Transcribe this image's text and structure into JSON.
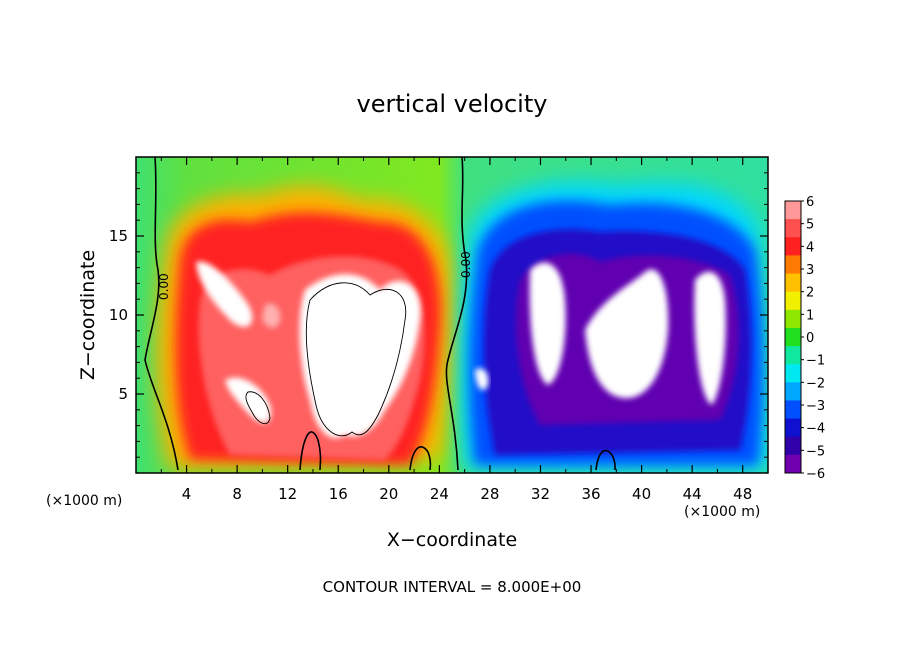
{
  "chart_data": {
    "type": "heatmap",
    "title": "vertical velocity",
    "xlabel": "X−coordinate",
    "ylabel": "Z−coordinate",
    "x_unit": "(×1000 m)",
    "x_unit_right": "(×1000 m)",
    "footer": "CONTOUR INTERVAL = 8.000E+00",
    "xlim": [
      0,
      50
    ],
    "ylim": [
      0,
      20
    ],
    "x_ticks": [
      "4",
      "8",
      "12",
      "16",
      "20",
      "24",
      "28",
      "32",
      "36",
      "40",
      "44",
      "48"
    ],
    "x_tick_values": [
      4,
      8,
      12,
      16,
      20,
      24,
      28,
      32,
      36,
      40,
      44,
      48
    ],
    "y_ticks": [
      "5",
      "10",
      "15"
    ],
    "y_tick_values": [
      5,
      10,
      15
    ],
    "contour_labels": [
      "0.00",
      "0.00"
    ],
    "colorbar": {
      "levels": [
        6,
        5,
        4,
        3,
        2,
        1,
        0,
        -1,
        -2,
        -3,
        -4,
        -5,
        -6
      ],
      "labels": [
        "6",
        "5",
        "4",
        "3",
        "2",
        "1",
        "0",
        "−1",
        "−2",
        "−3",
        "−4",
        "−5",
        "−6"
      ],
      "colors": [
        "#ff9898",
        "#ff5050",
        "#ff2020",
        "#ff7a00",
        "#ffc000",
        "#f0f000",
        "#90e800",
        "#20e020",
        "#10e8a0",
        "#00e8f0",
        "#00a8ff",
        "#0050ff",
        "#1010d0",
        "#3000a8",
        "#7000b0"
      ]
    },
    "features": [
      {
        "kind": "updraft",
        "x": 8,
        "z": 10,
        "value": 6
      },
      {
        "kind": "updraft",
        "x": 17,
        "z": 8,
        "value": 6
      },
      {
        "kind": "downdraft",
        "x": 32,
        "z": 10,
        "value": -6
      },
      {
        "kind": "downdraft",
        "x": 38,
        "z": 9,
        "value": -6
      },
      {
        "kind": "downdraft",
        "x": 45,
        "z": 9,
        "value": -6
      }
    ]
  }
}
